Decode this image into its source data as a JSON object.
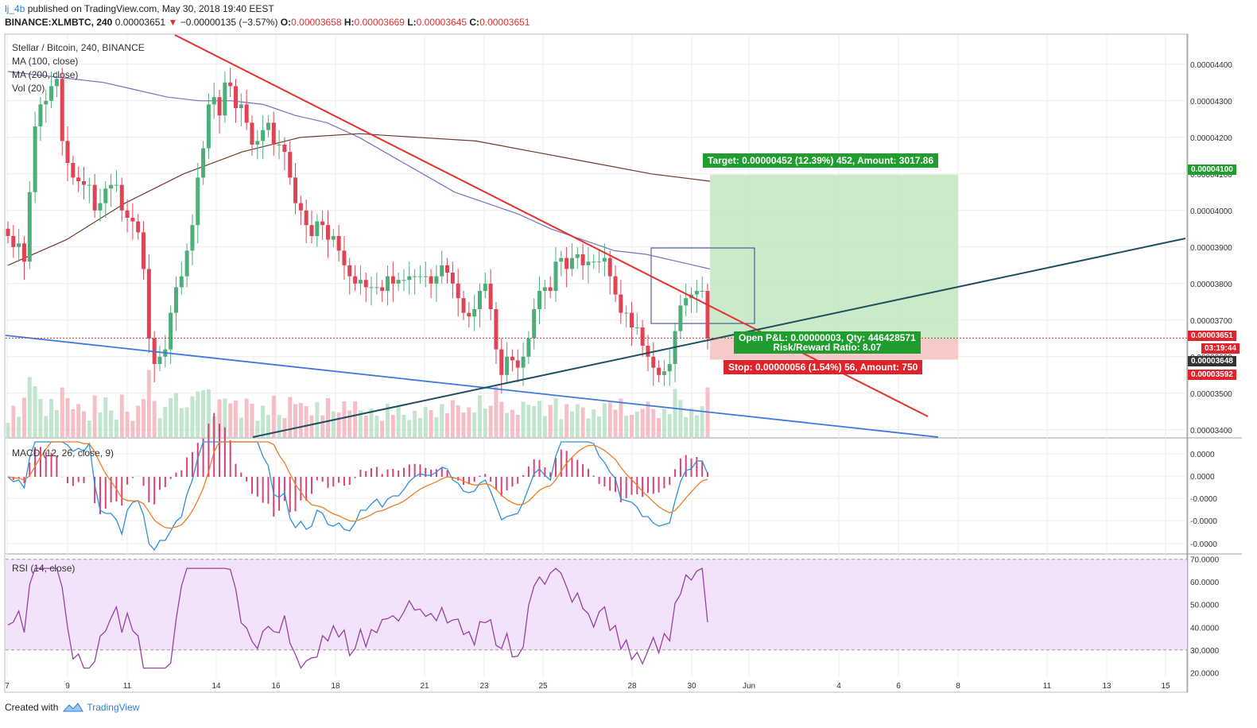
{
  "header": {
    "author": "lj_4b",
    "published": "published on TradingView.com, May 30, 2018 19:40 EEST",
    "symbol": "BINANCE:XLMBTC, 240",
    "last": "0.00003651",
    "arrow": "▼",
    "change": "−0.00000135 (−3.57%)",
    "o_label": "O:",
    "o_val": "0.00003658",
    "h_label": "H:",
    "h_val": "0.00003669",
    "l_label": "L:",
    "l_val": "0.00003645",
    "c_label": "C:",
    "c_val": "0.00003651"
  },
  "legend": {
    "title": "Stellar / Bitcoin, 240, BINANCE",
    "ma100": "MA (100, close)",
    "ma200": "MA (200, close)",
    "vol": "Vol (20)",
    "macd": "MACD (12, 26, close, 9)",
    "rsi": "RSI (14, close)"
  },
  "position": {
    "target": "Target: 0.00000452 (12.39%) 452, Amount: 3017.86",
    "open_pnl": "Open P&L: 0.00000003, Qty: 446428571",
    "rr": "Risk/Reward Ratio: 8.07",
    "stop": "Stop: 0.00000056 (1.54%) 56, Amount: 750"
  },
  "price_tags": {
    "target": "0.00004100",
    "last": "0.00003651",
    "countdown": "03:19:44",
    "entry": "0.00003648",
    "stop": "0.00003592"
  },
  "footer": {
    "created": "Created with",
    "brand": "TradingView"
  },
  "colors": {
    "up": "#4caf7a",
    "down": "#e04454",
    "ma100": "#7b6fc2",
    "ma200": "#6d3b2b",
    "trend_red": "#e8302a",
    "trend_blue": "#3d7ae0",
    "trend_teal": "#1e4f5e",
    "macd": "#2b8fe0",
    "signal": "#f07b23",
    "hist": "#d8407a",
    "rsi": "#9a3fa6"
  },
  "chart_data": {
    "type": "candlestick",
    "title": "Stellar / Bitcoin, 240, BINANCE",
    "x_ticks": [
      "7",
      "9",
      "11",
      "14",
      "16",
      "18",
      "21",
      "23",
      "25",
      "28",
      "30",
      "Jun",
      "4",
      "6",
      "8",
      "11",
      "13",
      "15"
    ],
    "price_ticks": [
      "0.00004400",
      "0.00004300",
      "0.00004200",
      "0.00004100",
      "0.00004000",
      "0.00003900",
      "0.00003800",
      "0.00003700",
      "0.00003600",
      "0.00003500",
      "0.00003400"
    ],
    "price_range": [
      3.38e-05,
      4.48e-05
    ],
    "macd_ticks": [
      "0.0000",
      "0.0000",
      "-0.0000",
      "-0.0000",
      "-0.0000"
    ],
    "rsi_ticks": [
      "70.0000",
      "60.0000",
      "50.0000",
      "40.0000",
      "30.0000",
      "20.0000"
    ],
    "rsi_range": [
      18,
      72
    ],
    "rsi_band": [
      30,
      70
    ],
    "closes": [
      3.93,
      3.9,
      3.91,
      3.86,
      4.05,
      4.23,
      4.29,
      4.3,
      4.34,
      4.36,
      4.19,
      4.13,
      4.09,
      4.08,
      4.07,
      4.07,
      4.0,
      4.02,
      4.06,
      4.07,
      4.07,
      4.0,
      3.98,
      3.97,
      3.94,
      3.84,
      3.65,
      3.58,
      3.6,
      3.62,
      3.72,
      3.79,
      3.82,
      3.89,
      3.96,
      4.09,
      4.17,
      4.29,
      4.31,
      4.26,
      4.35,
      4.34,
      4.28,
      4.29,
      4.24,
      4.18,
      4.19,
      4.22,
      4.24,
      4.18,
      4.18,
      4.16,
      4.09,
      4.02,
      4.0,
      3.96,
      3.93,
      3.97,
      3.96,
      3.92,
      3.93,
      3.89,
      3.85,
      3.82,
      3.8,
      3.81,
      3.79,
      3.79,
      3.79,
      3.78,
      3.82,
      3.8,
      3.81,
      3.81,
      3.82,
      3.82,
      3.82,
      3.82,
      3.8,
      3.82,
      3.85,
      3.83,
      3.8,
      3.76,
      3.72,
      3.71,
      3.73,
      3.78,
      3.8,
      3.73,
      3.62,
      3.55,
      3.6,
      3.59,
      3.57,
      3.6,
      3.65,
      3.73,
      3.78,
      3.79,
      3.78,
      3.86,
      3.87,
      3.84,
      3.87,
      3.88,
      3.85,
      3.86,
      3.86,
      3.86,
      3.87,
      3.82,
      3.77,
      3.72,
      3.72,
      3.68,
      3.68,
      3.63,
      3.6,
      3.57,
      3.55,
      3.56,
      3.58,
      3.67,
      3.74,
      3.76,
      3.77,
      3.78,
      3.78,
      3.65
    ],
    "ma100": [
      4.38,
      4.37,
      4.36,
      4.35,
      4.33,
      4.31,
      4.3,
      4.3,
      4.29,
      4.26,
      4.24,
      4.2,
      4.15,
      4.1,
      4.05,
      4.02,
      3.99,
      3.95,
      3.92,
      3.89,
      3.88,
      3.86,
      3.84
    ],
    "ma200": [
      3.85,
      3.92,
      4.02,
      4.1,
      4.16,
      4.2,
      4.21,
      4.2,
      4.19,
      4.16,
      4.13,
      4.1,
      4.08
    ]
  }
}
